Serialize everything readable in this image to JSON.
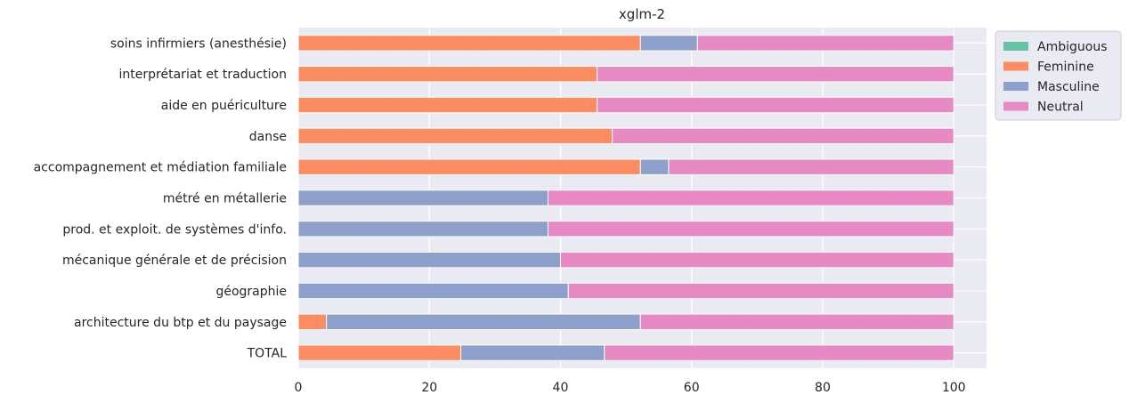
{
  "chart_data": {
    "type": "bar",
    "orientation": "horizontal",
    "stacked": true,
    "title": "xglm-2",
    "xlabel": "",
    "ylabel": "",
    "xlim": [
      0,
      105
    ],
    "xticks": [
      0,
      20,
      40,
      60,
      80,
      100
    ],
    "grid": true,
    "legend_position": "outside-top-right",
    "categories": [
      "soins infirmiers (anesthésie)",
      "interprétariat et traduction",
      "aide en puériculture",
      "danse",
      "accompagnement et médiation familiale",
      "métré en métallerie",
      "prod. et exploit. de systèmes d'info.",
      "mécanique générale et de précision",
      "géographie",
      "architecture du btp et du paysage",
      "TOTAL"
    ],
    "series": [
      {
        "name": "Ambiguous",
        "color": "#66c2a5",
        "values": [
          0,
          0,
          0,
          0,
          0,
          0,
          0,
          0,
          0,
          0,
          0
        ]
      },
      {
        "name": "Feminine",
        "color": "#fc8d62",
        "values": [
          52.2,
          45.6,
          45.6,
          47.9,
          52.2,
          0,
          0,
          0,
          0,
          4.3,
          24.8
        ]
      },
      {
        "name": "Masculine",
        "color": "#8da0cb",
        "values": [
          8.7,
          0,
          0,
          0,
          4.3,
          38.1,
          38.1,
          40.0,
          41.2,
          47.9,
          21.9
        ]
      },
      {
        "name": "Neutral",
        "color": "#e78ac3",
        "values": [
          39.1,
          54.4,
          54.4,
          52.1,
          43.5,
          61.9,
          61.9,
          60.0,
          58.8,
          47.8,
          53.3
        ]
      }
    ]
  }
}
